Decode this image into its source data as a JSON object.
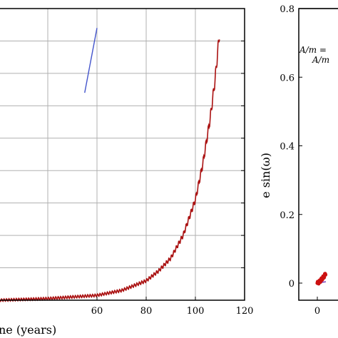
{
  "chart_data": [
    {
      "type": "line",
      "title": "",
      "xlabel": "Time (years)",
      "xlabel_visible": "ne (years)",
      "ylabel": "",
      "x_range": [
        20,
        120
      ],
      "y_range": [
        0,
        0.9
      ],
      "x_ticks": [
        "60",
        "80",
        "100",
        "120"
      ],
      "grid": true,
      "series": [
        {
          "name": "",
          "color": "#4455cc",
          "x": [
            55.0,
            60.0
          ],
          "y": [
            0.64,
            0.84
          ]
        },
        {
          "name": "",
          "color": "#aa1111",
          "x": [
            20,
            40,
            60,
            70,
            80,
            85,
            90,
            95,
            100,
            103,
            106,
            108,
            110
          ],
          "y": [
            0.0,
            0.005,
            0.015,
            0.03,
            0.06,
            0.09,
            0.13,
            0.2,
            0.31,
            0.42,
            0.56,
            0.68,
            0.84
          ]
        }
      ]
    },
    {
      "type": "scatter",
      "title": "",
      "xlabel": "",
      "ylabel": "e sin(ω)",
      "y_ticks": [
        "0",
        "0.2",
        "0.4",
        "0.6",
        "0.8"
      ],
      "x_ticks": [
        "0"
      ],
      "y_range": [
        0,
        0.8
      ],
      "grid": false,
      "legend_visible": [
        "A/m =",
        "A/m"
      ],
      "series": [
        {
          "name": "",
          "color": "#cc1111",
          "x": [
            0,
            0.02,
            0.04,
            0.06,
            0.08,
            0.1
          ],
          "y": [
            0.0,
            0.003,
            0.008,
            0.014,
            0.02,
            0.028
          ]
        },
        {
          "name": "",
          "color": "#7744bb",
          "x": [
            0,
            0.05,
            0.1
          ],
          "y": [
            0.0,
            0.002,
            0.004
          ]
        }
      ]
    }
  ]
}
